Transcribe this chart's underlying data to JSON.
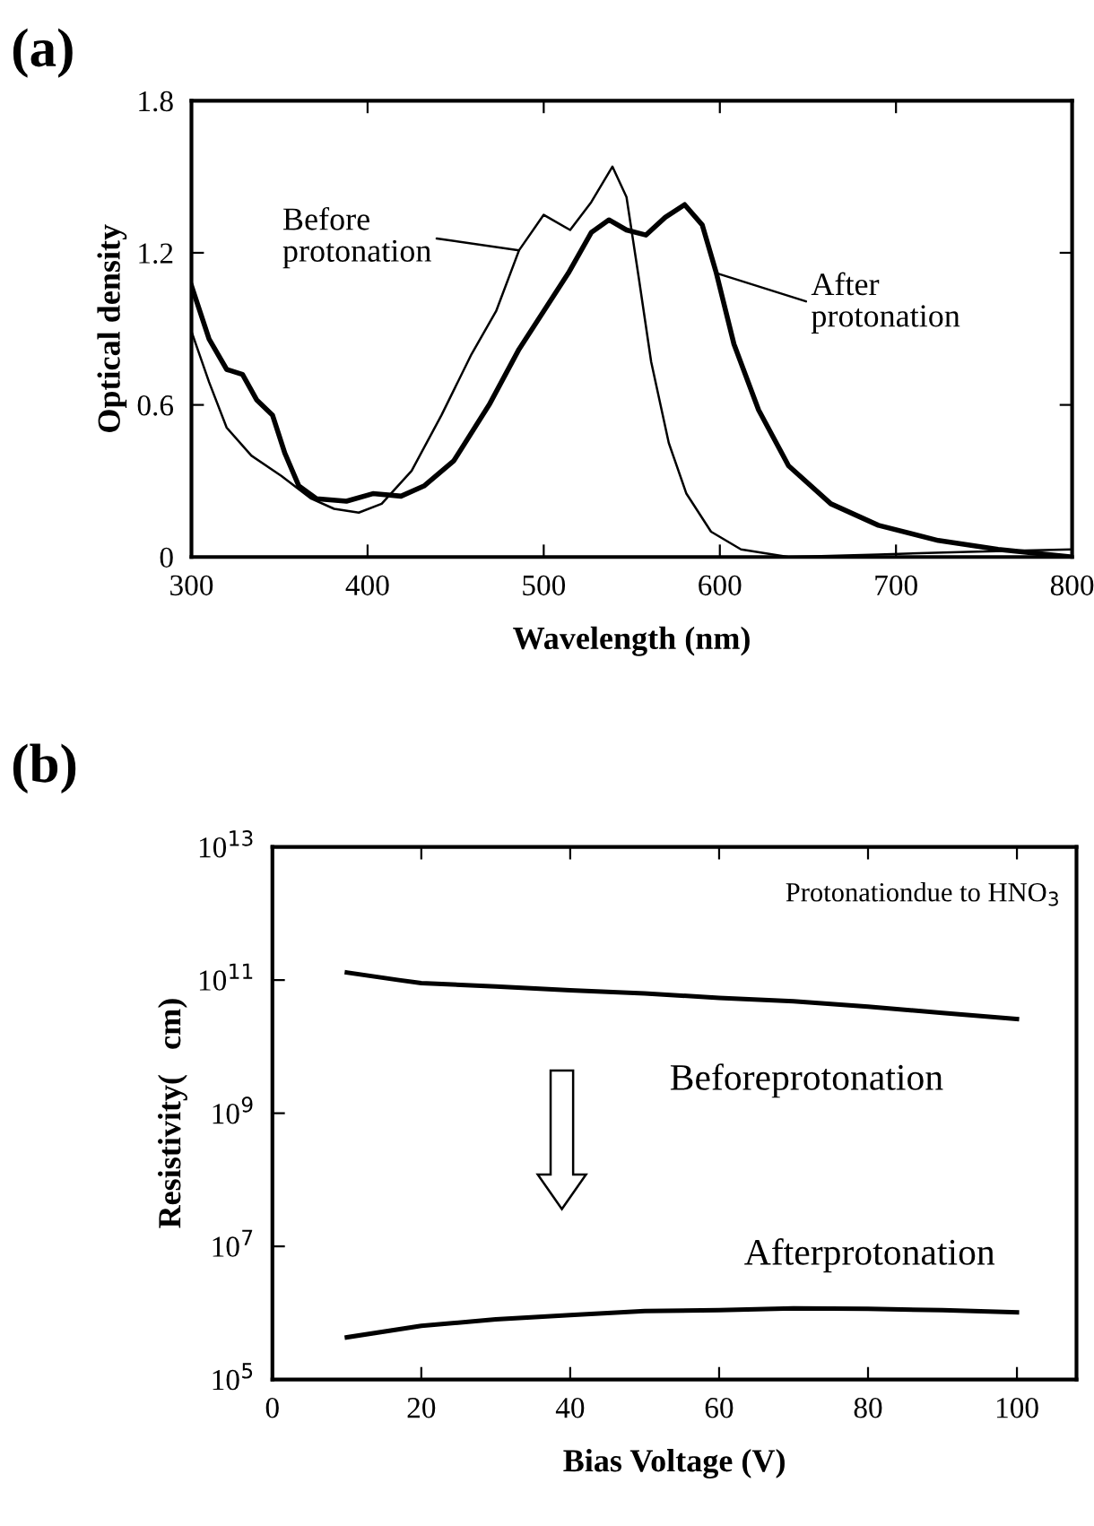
{
  "chart_data": [
    {
      "type": "line",
      "title": "(a)",
      "xlabel": "Wavelength (nm)",
      "ylabel": "Optical density",
      "xlim": [
        300,
        800
      ],
      "ylim": [
        0,
        1.8
      ],
      "xticks": [
        300,
        400,
        500,
        600,
        700,
        800
      ],
      "yticks": [
        0,
        0.6,
        1.2,
        1.8
      ],
      "grid": false,
      "legend": false,
      "annotations": [
        {
          "text": "Before\nprotonation",
          "x": 486,
          "y": 1.21
        },
        {
          "text": "After\nprotonation",
          "x": 598,
          "y": 1.12
        }
      ],
      "series": [
        {
          "color": "#000000",
          "x": [
            300,
            310,
            320,
            334,
            351,
            368,
            381,
            395,
            408,
            425,
            442,
            459,
            473,
            486,
            500,
            515,
            527,
            539,
            547,
            554,
            561,
            571,
            581,
            595,
            612,
            639,
            690,
            741,
            800
          ],
          "values": [
            0.89,
            0.69,
            0.51,
            0.4,
            0.32,
            0.23,
            0.19,
            0.175,
            0.21,
            0.34,
            0.56,
            0.8,
            0.97,
            1.21,
            1.35,
            1.29,
            1.4,
            1.54,
            1.42,
            1.1,
            0.77,
            0.45,
            0.25,
            0.1,
            0.03,
            0.0,
            0.01,
            0.02,
            0.03
          ]
        },
        {
          "color": "#000000",
          "x": [
            300,
            310,
            320,
            329,
            337,
            346,
            353,
            361,
            371,
            388,
            403,
            419,
            432,
            449,
            469,
            486,
            500,
            514,
            527,
            537,
            547,
            558,
            569,
            580,
            590,
            598,
            608,
            622,
            639,
            663,
            690,
            724,
            758,
            800
          ],
          "values": [
            1.07,
            0.86,
            0.74,
            0.72,
            0.62,
            0.56,
            0.41,
            0.28,
            0.23,
            0.22,
            0.25,
            0.24,
            0.28,
            0.38,
            0.6,
            0.82,
            0.97,
            1.12,
            1.28,
            1.33,
            1.29,
            1.27,
            1.34,
            1.39,
            1.31,
            1.12,
            0.84,
            0.58,
            0.36,
            0.21,
            0.125,
            0.065,
            0.03,
            0.0
          ]
        }
      ]
    },
    {
      "type": "line",
      "title": "(b)",
      "xlabel": "Bias Voltage (V)",
      "ylabel": "Resistivity(   cm)",
      "log": "y",
      "xlim": [
        0,
        108
      ],
      "ylim": [
        100000.0,
        10000000000000.0
      ],
      "xticks": [
        0,
        20,
        40,
        60,
        80,
        100
      ],
      "yticks": [
        {
          "value": 100000.0,
          "label": "10$^{5}$"
        },
        {
          "value": 10000000.0,
          "label": "10$^{7}$"
        },
        {
          "value": 1000000000.0,
          "label": "10$^{9}$"
        },
        {
          "value": 100000000000.0,
          "label": "10$^{11}$"
        },
        {
          "value": 10000000000000.0,
          "label": "10$^{13}$"
        }
      ],
      "grid": false,
      "legend": false,
      "annotations": [
        "Protonationdue to HNO$_{3}$"
      ],
      "series": [
        {
          "name": "Beforeprotonation",
          "color": "#000000",
          "x": [
            10,
            17,
            20,
            30,
            40,
            50,
            60,
            70,
            80,
            90,
            100
          ],
          "values": [
            130000000000.0,
            100000000000.0,
            90000000000.0,
            80000000000.0,
            70000000000.0,
            63000000000.0,
            54000000000.0,
            48000000000.0,
            40000000000.0,
            32000000000.0,
            26000000000.0
          ]
        },
        {
          "name": "Afterprotonation",
          "color": "#000000",
          "x": [
            10,
            20,
            30,
            40,
            50,
            60,
            70,
            80,
            90,
            100
          ],
          "values": [
            430000.0,
            640000.0,
            800000.0,
            930000.0,
            1070000.0,
            1100000.0,
            1170000.0,
            1150000.0,
            1100000.0,
            1020000.0
          ]
        }
      ]
    }
  ]
}
